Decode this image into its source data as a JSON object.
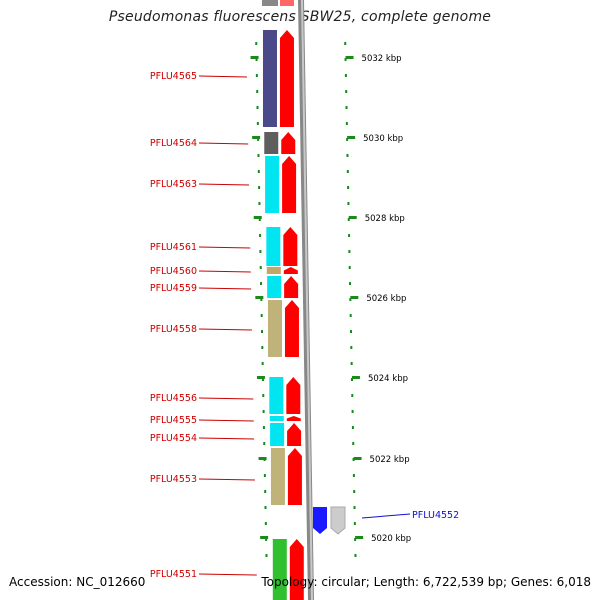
{
  "title": "Pseudomonas fluorescens SBW25, complete genome",
  "footer": {
    "accession": "Accession: NC_012660",
    "topology": "Topology: circular; Length: 6,722,539 bp; Genes: 6,018"
  },
  "scale_ticks": [
    {
      "label": "5032 kbp",
      "kbp": 5032
    },
    {
      "label": "5030 kbp",
      "kbp": 5030
    },
    {
      "label": "5028 kbp",
      "kbp": 5028
    },
    {
      "label": "5026 kbp",
      "kbp": 5026
    },
    {
      "label": "5024 kbp",
      "kbp": 5024
    },
    {
      "label": "5022 kbp",
      "kbp": 5022
    },
    {
      "label": "5020 kbp",
      "kbp": 5020
    }
  ],
  "genes": [
    {
      "label": "PFLU4565",
      "color": "#4a4a8a"
    },
    {
      "label": "PFLU4564",
      "color": "#5e5e5e"
    },
    {
      "label": "PFLU4563",
      "color": "#00e5f0"
    },
    {
      "label": "PFLU4561",
      "color": "#00e5f0"
    },
    {
      "label": "PFLU4560",
      "color": "#bfa868"
    },
    {
      "label": "PFLU4559",
      "color": "#00e5f0"
    },
    {
      "label": "PFLU4558",
      "color": "#bfb37a"
    },
    {
      "label": "PFLU4556",
      "color": "#00e5f0"
    },
    {
      "label": "PFLU4555",
      "color": "#00e5f0"
    },
    {
      "label": "PFLU4554",
      "color": "#00e5f0"
    },
    {
      "label": "PFLU4553",
      "color": "#bfb37a"
    },
    {
      "label": "PFLU4552",
      "color": "#1a1aff"
    },
    {
      "label": "PFLU4551",
      "color": "#2fbf2f"
    }
  ],
  "colors": {
    "gene_label": "#cc0000",
    "gene_label_minus": "#1010cc",
    "cds_plus": "#ff0000",
    "cds_minus": "#cccccc",
    "backbone": "#888888",
    "tick": "#1a8a1a"
  }
}
